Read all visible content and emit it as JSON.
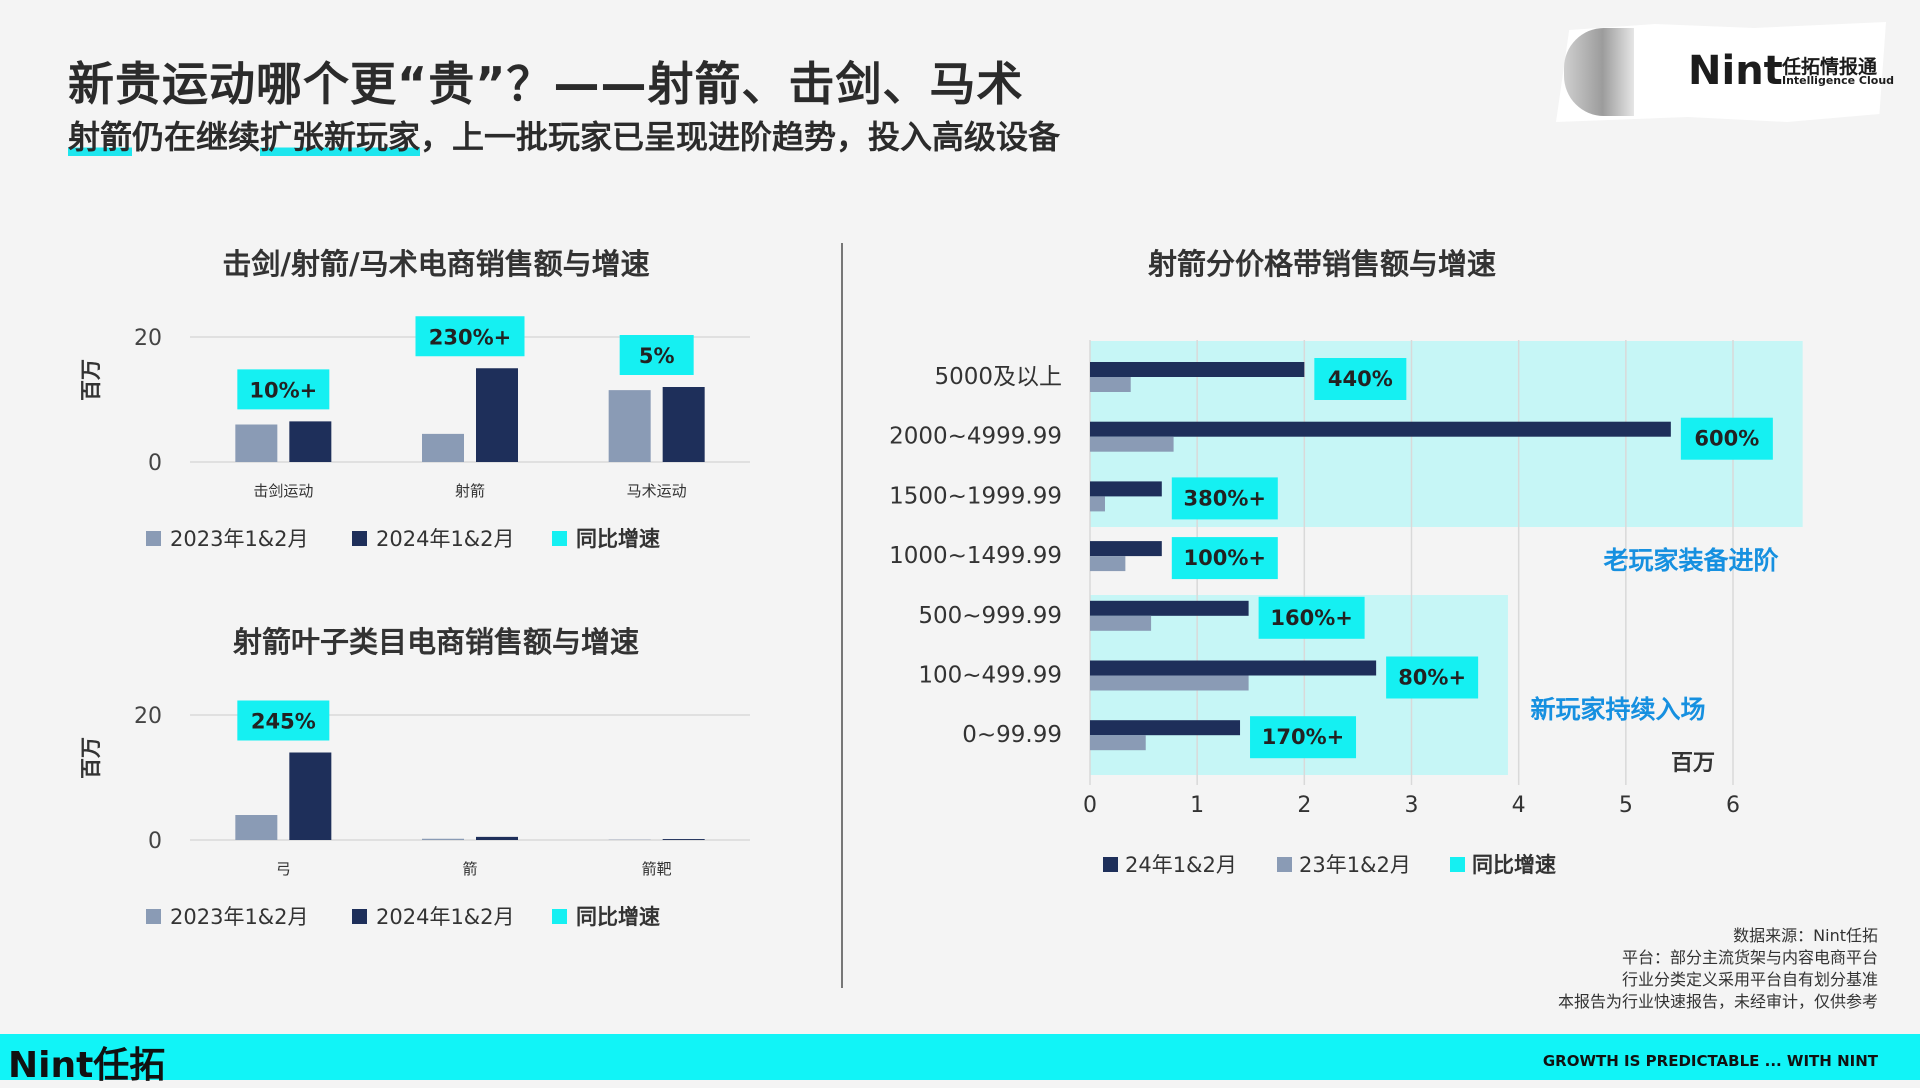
{
  "header": {
    "title": "新贵运动哪个更“贵”？——射箭、击剑、马术",
    "subtitle_hl1": "射箭",
    "subtitle_part1": "仍在继续",
    "subtitle_hl2": "扩张新玩家",
    "subtitle_part2": "，上一批玩家已呈现进阶趋势，投入高级设备"
  },
  "logo": {
    "brand": "Nint",
    "cn": "任拓情报通",
    "en": "Intelligence Cloud"
  },
  "colors": {
    "series_2023": "#8a9bb5",
    "series_2024": "#1e2f5a",
    "growth": "#15f0f2",
    "band": "#c6f6f6",
    "grid": "#d9d9d9"
  },
  "chart_data": [
    {
      "type": "bar",
      "title": "击剑/射箭/马术电商销售额与增速",
      "ylabel": "百万",
      "ylim": [
        0,
        20
      ],
      "yticks": [
        0,
        20
      ],
      "categories": [
        "击剑运动",
        "射箭",
        "马术运动"
      ],
      "series": [
        {
          "name": "2023年1&2月",
          "values": [
            6,
            4.5,
            11.5
          ]
        },
        {
          "name": "2024年1&2月",
          "values": [
            6.5,
            15,
            12
          ]
        }
      ],
      "growth_labels": [
        "10%+",
        "230%+",
        "5%"
      ],
      "legend": [
        "2023年1&2月",
        "2024年1&2月",
        "同比增速"
      ]
    },
    {
      "type": "bar",
      "title": "射箭叶子类目电商销售额与增速",
      "ylabel": "百万",
      "ylim": [
        0,
        20
      ],
      "yticks": [
        0,
        20
      ],
      "categories": [
        "弓",
        "箭",
        "箭靶"
      ],
      "series": [
        {
          "name": "2023年1&2月",
          "values": [
            4,
            0.2,
            0.05
          ]
        },
        {
          "name": "2024年1&2月",
          "values": [
            14,
            0.5,
            0.15
          ]
        }
      ],
      "growth_labels": [
        "245%",
        "",
        ""
      ],
      "legend": [
        "2023年1&2月",
        "2024年1&2月",
        "同比增速"
      ]
    },
    {
      "type": "bar",
      "orientation": "horizontal",
      "title": "射箭分价格带销售额与增速",
      "xlabel": "百万",
      "xlim": [
        0,
        6
      ],
      "xticks": [
        0,
        1,
        2,
        3,
        4,
        5,
        6
      ],
      "categories": [
        "5000及以上",
        "2000~4999.99",
        "1500~1999.99",
        "1000~1499.99",
        "500~999.99",
        "100~499.99",
        "0~99.99"
      ],
      "series": [
        {
          "name": "24年1&2月",
          "values": [
            2.0,
            5.42,
            0.67,
            0.67,
            1.48,
            2.67,
            1.4
          ]
        },
        {
          "name": "23年1&2月",
          "values": [
            0.38,
            0.78,
            0.14,
            0.33,
            0.57,
            1.48,
            0.52
          ]
        }
      ],
      "growth_labels": [
        "440%",
        "600%",
        "380%+",
        "100%+",
        "160%+",
        "80%+",
        "170%+"
      ],
      "annotations": [
        "老玩家装备进阶",
        "新玩家持续入场"
      ],
      "legend": [
        "24年1&2月",
        "23年1&2月",
        "同比增速"
      ]
    }
  ],
  "notes": {
    "source": "数据来源：Nint任拓",
    "platform": "平台：部分主流货架与内容电商平台",
    "definition": "行业分类定义采用平台自有划分基准",
    "disclaimer": "本报告为行业快速报告，未经审计，仅供参考"
  },
  "footer": {
    "brand": "Nint任拓",
    "slogan": "GROWTH IS PREDICTABLE ... WITH NINT"
  }
}
